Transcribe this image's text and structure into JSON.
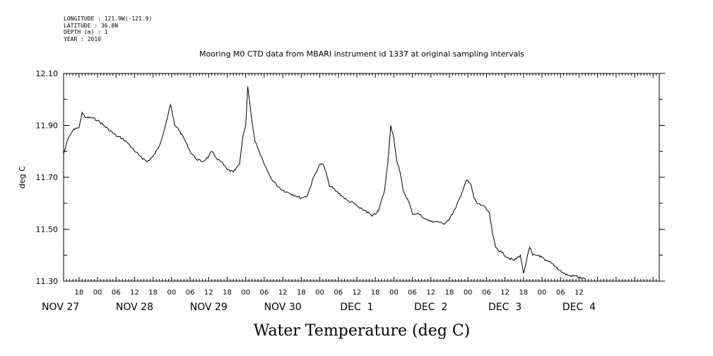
{
  "header": {
    "longitude": "LONGITUDE : 121.9W(-121.9)",
    "latitude": "LATITUDE : 36.8N",
    "depth": "DEPTH (m) : 1",
    "year": "YEAR : 2010"
  },
  "chart_data": {
    "type": "line",
    "title": "Mooring M0 CTD data from MBARI instrument id 1337 at original sampling intervals",
    "xlabel": "Water Temperature (deg C)",
    "ylabel": "deg C",
    "ylim": [
      11.3,
      12.1
    ],
    "xlim": [
      "2010-11-26T13:00",
      "2010-12-04T14:00"
    ],
    "y_ticks": [
      "11.30",
      "11.50",
      "11.70",
      "11.90",
      "12.10"
    ],
    "hour_ticks": [
      {
        "t": "2010-11-26T18:00",
        "label": "18"
      },
      {
        "t": "2010-11-27T00:00",
        "label": "00"
      },
      {
        "t": "2010-11-27T06:00",
        "label": "06"
      },
      {
        "t": "2010-11-27T12:00",
        "label": "12"
      },
      {
        "t": "2010-11-27T18:00",
        "label": "18"
      },
      {
        "t": "2010-11-28T00:00",
        "label": "00"
      },
      {
        "t": "2010-11-28T06:00",
        "label": "06"
      },
      {
        "t": "2010-11-28T12:00",
        "label": "12"
      },
      {
        "t": "2010-11-28T18:00",
        "label": "18"
      },
      {
        "t": "2010-11-29T00:00",
        "label": "00"
      },
      {
        "t": "2010-11-29T06:00",
        "label": "06"
      },
      {
        "t": "2010-11-29T12:00",
        "label": "12"
      },
      {
        "t": "2010-11-29T18:00",
        "label": "18"
      },
      {
        "t": "2010-11-30T00:00",
        "label": "00"
      },
      {
        "t": "2010-11-30T06:00",
        "label": "06"
      },
      {
        "t": "2010-11-30T12:00",
        "label": "12"
      },
      {
        "t": "2010-11-30T18:00",
        "label": "18"
      },
      {
        "t": "2010-12-01T00:00",
        "label": "00"
      },
      {
        "t": "2010-12-01T06:00",
        "label": "06"
      },
      {
        "t": "2010-12-01T12:00",
        "label": "12"
      },
      {
        "t": "2010-12-01T18:00",
        "label": "18"
      },
      {
        "t": "2010-12-02T00:00",
        "label": "00"
      },
      {
        "t": "2010-12-02T06:00",
        "label": "06"
      },
      {
        "t": "2010-12-02T12:00",
        "label": "12"
      },
      {
        "t": "2010-12-02T18:00",
        "label": "18"
      },
      {
        "t": "2010-12-03T00:00",
        "label": "00"
      },
      {
        "t": "2010-12-03T06:00",
        "label": "06"
      },
      {
        "t": "2010-12-03T12:00",
        "label": "12"
      }
    ],
    "day_labels": [
      {
        "t": "2010-11-26T12:00",
        "label": "NOV 27"
      },
      {
        "t": "2010-11-27T12:00",
        "label": "NOV 28"
      },
      {
        "t": "2010-11-28T12:00",
        "label": "NOV 29"
      },
      {
        "t": "2010-11-29T12:00",
        "label": "NOV 30"
      },
      {
        "t": "2010-11-30T12:00",
        "label": "DEC  1"
      },
      {
        "t": "2010-12-01T12:00",
        "label": "DEC  2"
      },
      {
        "t": "2010-12-02T12:00",
        "label": "DEC  3"
      },
      {
        "t": "2010-12-03T12:00",
        "label": "DEC  4"
      }
    ],
    "series": [
      {
        "points": [
          [
            "2010-11-26T13:00",
            11.79
          ],
          [
            "2010-11-26T14:30",
            11.85
          ],
          [
            "2010-11-26T16:00",
            11.88
          ],
          [
            "2010-11-26T17:00",
            11.89
          ],
          [
            "2010-11-26T18:00",
            11.89
          ],
          [
            "2010-11-26T19:00",
            11.95
          ],
          [
            "2010-11-26T20:00",
            11.93
          ],
          [
            "2010-11-26T22:00",
            11.93
          ],
          [
            "2010-11-27T00:00",
            11.92
          ],
          [
            "2010-11-27T02:00",
            11.9
          ],
          [
            "2010-11-27T04:00",
            11.88
          ],
          [
            "2010-11-27T06:00",
            11.86
          ],
          [
            "2010-11-27T08:00",
            11.85
          ],
          [
            "2010-11-27T10:00",
            11.83
          ],
          [
            "2010-11-27T12:00",
            11.8
          ],
          [
            "2010-11-27T14:00",
            11.78
          ],
          [
            "2010-11-27T16:00",
            11.76
          ],
          [
            "2010-11-27T18:00",
            11.78
          ],
          [
            "2010-11-27T20:00",
            11.82
          ],
          [
            "2010-11-27T22:00",
            11.9
          ],
          [
            "2010-11-27T23:00",
            11.95
          ],
          [
            "2010-11-27T23:40",
            11.98
          ],
          [
            "2010-11-28T01:00",
            11.9
          ],
          [
            "2010-11-28T02:00",
            11.89
          ],
          [
            "2010-11-28T04:00",
            11.85
          ],
          [
            "2010-11-28T06:00",
            11.8
          ],
          [
            "2010-11-28T08:00",
            11.77
          ],
          [
            "2010-11-28T10:00",
            11.76
          ],
          [
            "2010-11-28T12:00",
            11.78
          ],
          [
            "2010-11-28T13:00",
            11.8
          ],
          [
            "2010-11-28T14:00",
            11.78
          ],
          [
            "2010-11-28T16:00",
            11.76
          ],
          [
            "2010-11-28T18:00",
            11.73
          ],
          [
            "2010-11-28T20:00",
            11.72
          ],
          [
            "2010-11-28T22:00",
            11.75
          ],
          [
            "2010-11-28T23:00",
            11.85
          ],
          [
            "2010-11-29T00:00",
            11.9
          ],
          [
            "2010-11-29T00:40",
            12.05
          ],
          [
            "2010-11-29T02:00",
            11.92
          ],
          [
            "2010-11-29T03:00",
            11.84
          ],
          [
            "2010-11-29T04:00",
            11.81
          ],
          [
            "2010-11-29T06:00",
            11.75
          ],
          [
            "2010-11-29T08:00",
            11.7
          ],
          [
            "2010-11-29T10:00",
            11.67
          ],
          [
            "2010-11-29T12:00",
            11.65
          ],
          [
            "2010-11-29T14:00",
            11.64
          ],
          [
            "2010-11-29T16:00",
            11.63
          ],
          [
            "2010-11-29T18:00",
            11.62
          ],
          [
            "2010-11-29T20:00",
            11.63
          ],
          [
            "2010-11-29T22:00",
            11.7
          ],
          [
            "2010-11-30T00:00",
            11.75
          ],
          [
            "2010-11-30T01:00",
            11.75
          ],
          [
            "2010-11-30T02:00",
            11.72
          ],
          [
            "2010-11-30T03:00",
            11.67
          ],
          [
            "2010-11-30T05:00",
            11.65
          ],
          [
            "2010-11-30T07:00",
            11.63
          ],
          [
            "2010-11-30T09:00",
            11.61
          ],
          [
            "2010-11-30T11:00",
            11.6
          ],
          [
            "2010-11-30T13:00",
            11.58
          ],
          [
            "2010-11-30T15:00",
            11.57
          ],
          [
            "2010-11-30T17:00",
            11.55
          ],
          [
            "2010-11-30T19:00",
            11.57
          ],
          [
            "2010-11-30T21:00",
            11.65
          ],
          [
            "2010-11-30T22:00",
            11.75
          ],
          [
            "2010-11-30T23:00",
            11.9
          ],
          [
            "2010-12-01T00:00",
            11.85
          ],
          [
            "2010-12-01T01:00",
            11.76
          ],
          [
            "2010-12-01T02:00",
            11.72
          ],
          [
            "2010-12-01T03:00",
            11.65
          ],
          [
            "2010-12-01T05:00",
            11.6
          ],
          [
            "2010-12-01T06:00",
            11.56
          ],
          [
            "2010-12-01T08:00",
            11.56
          ],
          [
            "2010-12-01T10:00",
            11.54
          ],
          [
            "2010-12-01T12:00",
            11.53
          ],
          [
            "2010-12-01T14:00",
            11.53
          ],
          [
            "2010-12-01T16:00",
            11.52
          ],
          [
            "2010-12-01T18:00",
            11.54
          ],
          [
            "2010-12-01T20:00",
            11.58
          ],
          [
            "2010-12-01T22:00",
            11.64
          ],
          [
            "2010-12-01T23:30",
            11.69
          ],
          [
            "2010-12-02T01:00",
            11.67
          ],
          [
            "2010-12-02T02:00",
            11.62
          ],
          [
            "2010-12-02T03:00",
            11.6
          ],
          [
            "2010-12-02T05:00",
            11.59
          ],
          [
            "2010-12-02T07:00",
            11.56
          ],
          [
            "2010-12-02T08:00",
            11.48
          ],
          [
            "2010-12-02T09:00",
            11.43
          ],
          [
            "2010-12-02T11:00",
            11.41
          ],
          [
            "2010-12-02T13:00",
            11.39
          ],
          [
            "2010-12-02T15:00",
            11.38
          ],
          [
            "2010-12-02T17:00",
            11.4
          ],
          [
            "2010-12-02T18:00",
            11.33
          ],
          [
            "2010-12-02T19:00",
            11.38
          ],
          [
            "2010-12-02T20:00",
            11.43
          ],
          [
            "2010-12-02T21:00",
            11.4
          ],
          [
            "2010-12-02T23:00",
            11.4
          ],
          [
            "2010-12-03T01:00",
            11.38
          ],
          [
            "2010-12-03T03:00",
            11.37
          ],
          [
            "2010-12-03T05:00",
            11.35
          ],
          [
            "2010-12-03T07:00",
            11.33
          ],
          [
            "2010-12-03T09:00",
            11.32
          ],
          [
            "2010-12-03T11:00",
            11.32
          ],
          [
            "2010-12-03T13:00",
            11.31
          ],
          [
            "2010-12-03T14:00",
            11.31
          ]
        ]
      }
    ]
  }
}
